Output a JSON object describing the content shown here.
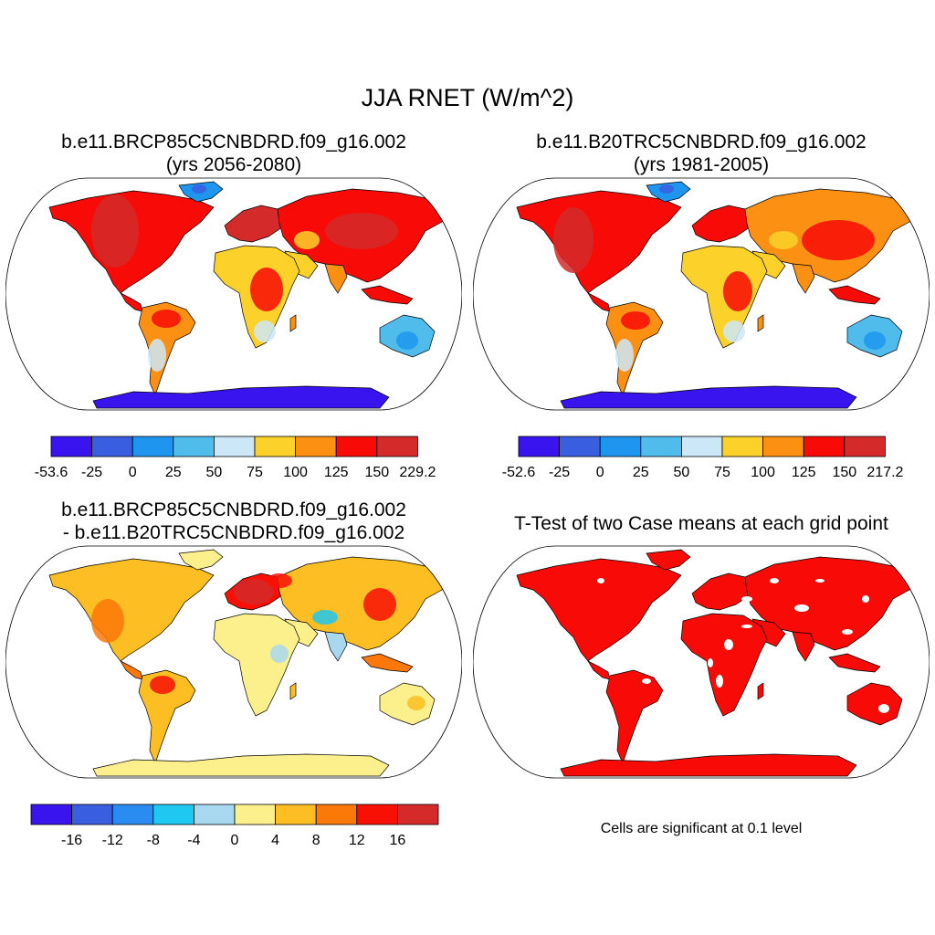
{
  "title": "JJA RNET (W/m^2)",
  "panels": [
    {
      "title_line1": "b.e11.BRCP85C5CNBDRD.f09_g16.002",
      "title_line2": "(yrs 2056-2080)",
      "colorbar": {
        "colors": [
          "#3a14ee",
          "#3a5ee0",
          "#1e96f0",
          "#50bcec",
          "#cce8f8",
          "#fcd22a",
          "#fc9012",
          "#f80a06",
          "#d42a2a"
        ],
        "labels": [
          "-53.6",
          "-25",
          "0",
          "25",
          "50",
          "75",
          "100",
          "125",
          "150",
          "229.2"
        ]
      }
    },
    {
      "title_line1": "b.e11.B20TRC5CNBDRD.f09_g16.002",
      "title_line2": "(yrs 1981-2005)",
      "colorbar": {
        "colors": [
          "#3a14ee",
          "#3a5ee0",
          "#1e96f0",
          "#50bcec",
          "#cce8f8",
          "#fcd22a",
          "#fc9012",
          "#f80a06",
          "#d42a2a"
        ],
        "labels": [
          "-52.6",
          "-25",
          "0",
          "25",
          "50",
          "75",
          "100",
          "125",
          "150",
          "217.2"
        ]
      }
    },
    {
      "title_line1": "b.e11.BRCP85C5CNBDRD.f09_g16.002",
      "title_line2": "- b.e11.B20TRC5CNBDRD.f09_g16.002",
      "colorbar": {
        "colors": [
          "#3a14ee",
          "#3a5ee0",
          "#2a8cf0",
          "#1ec8f0",
          "#a8d8f0",
          "#fcf08c",
          "#fcbe22",
          "#fc7808",
          "#f81006",
          "#d42a2a"
        ],
        "labels": [
          "-16",
          "-12",
          "-8",
          "-4",
          "0",
          "4",
          "8",
          "12",
          "16"
        ]
      }
    },
    {
      "title_line1": "T-Test of two Case means at each grid point",
      "note": "Cells are significant at 0.1 level",
      "fill": "#f80a06"
    }
  ]
}
